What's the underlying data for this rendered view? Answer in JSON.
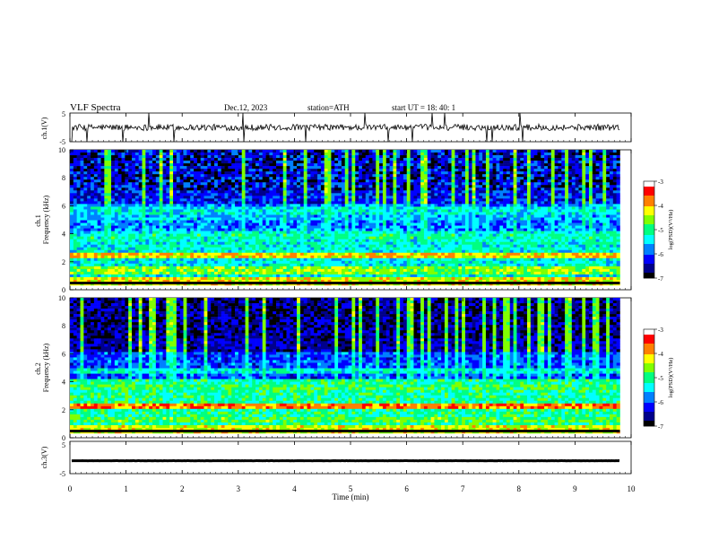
{
  "header": {
    "title": "VLF  Spectra",
    "date": "Dec.12, 2023",
    "station": "station=ATH",
    "start": "start  UT  =   18: 40: 1"
  },
  "chart_data": [
    {
      "type": "line",
      "panel": "ch1-waveform",
      "ylabel": "ch.1(V)",
      "ylim": [
        -5,
        5
      ],
      "yticks": [
        "5",
        "-5"
      ],
      "xlim": [
        0,
        10
      ],
      "series_description": "noisy amplitude trace around 0 V with sporadic spikes",
      "baseline": 0
    },
    {
      "type": "heatmap",
      "panel": "ch1-spectrogram",
      "ylabel": "ch.1\nFrequency  (kHz)",
      "ylim": [
        0,
        10
      ],
      "yticks": [
        "0",
        "2",
        "4",
        "6",
        "8",
        "10"
      ],
      "xlim": [
        0,
        10
      ],
      "bands_khz": [
        {
          "f": 0.3,
          "level": -4.2
        },
        {
          "f": 1.1,
          "level": -4.6
        },
        {
          "f": 2.2,
          "level": -4.1
        },
        {
          "f": 3.6,
          "level": -5.2
        },
        {
          "f": 5.0,
          "level": -5.6
        },
        {
          "f": 5.5,
          "level": -5.4
        }
      ],
      "colorbar": {
        "label": "log(PSD)(V²/Hz)",
        "min": -7,
        "max": -3,
        "ticks": [
          "-3",
          "-4",
          "-5",
          "-6",
          "-7"
        ]
      }
    },
    {
      "type": "heatmap",
      "panel": "ch2-spectrogram",
      "ylabel": "ch.2\nFrequency  (kHz)",
      "ylim": [
        0,
        10
      ],
      "yticks": [
        "0",
        "2",
        "4",
        "6",
        "8",
        "10"
      ],
      "xlim": [
        0,
        10
      ],
      "bands_khz": [
        {
          "f": 0.3,
          "level": -4.3
        },
        {
          "f": 1.0,
          "level": -4.8
        },
        {
          "f": 2.0,
          "level": -3.8
        },
        {
          "f": 3.4,
          "level": -4.9
        },
        {
          "f": 4.6,
          "level": -5.3
        }
      ],
      "colorbar": {
        "label": "log(PSD)(V²/Hz)",
        "min": -7,
        "max": -3,
        "ticks": [
          "-3",
          "-4",
          "-5",
          "-6",
          "-7"
        ]
      }
    },
    {
      "type": "line",
      "panel": "ch3-waveform",
      "ylabel": "ch.3(V)",
      "ylim": [
        -5,
        5
      ],
      "yticks": [
        "5",
        "-5"
      ],
      "xlim": [
        0,
        10
      ],
      "series_description": "flat thick trace at about -1 V",
      "baseline": -1
    }
  ],
  "x_axis": {
    "label": "Time  (min)",
    "ticks": [
      "0",
      "1",
      "2",
      "3",
      "4",
      "5",
      "6",
      "7",
      "8",
      "9",
      "10"
    ],
    "data_end_min": 9.8
  },
  "colormap": [
    "#000000",
    "#00008b",
    "#0000ff",
    "#0080ff",
    "#00ffff",
    "#00ff80",
    "#80ff00",
    "#ffff00",
    "#ff8000",
    "#ff0000",
    "#ffffff"
  ]
}
